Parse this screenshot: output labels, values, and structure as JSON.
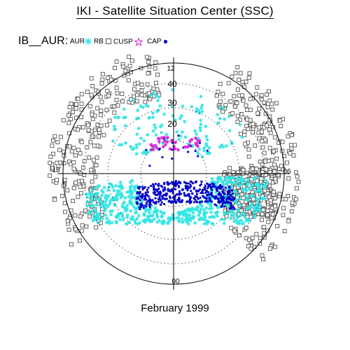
{
  "title": "IKI - Satellite Situation Center (SSC)",
  "legend": {
    "label": "IB__AUR:",
    "items": [
      {
        "name": "AUR",
        "symbol": "star",
        "color": "#33e5e5"
      },
      {
        "name": "RB",
        "symbol": "square",
        "color": "#555555"
      },
      {
        "name": "CUSP",
        "symbol": "star",
        "color": "#dd22dd"
      },
      {
        "name": "CAP",
        "symbol": "dot",
        "color": "#0000cc"
      }
    ]
  },
  "footer": "February 1999",
  "chart_data": {
    "type": "scatter",
    "coordinate_system": "polar (MLT / latitude)",
    "clock_labels": {
      "top": "12",
      "right": "06",
      "bottom": "00",
      "left": "18"
    },
    "radial_labels": [
      "40",
      "30",
      "20"
    ],
    "radial_max_label": "12",
    "grid": true,
    "series": [
      {
        "name": "AUR",
        "color": "#33e5e5",
        "marker": "star"
      },
      {
        "name": "RB",
        "color": "#555555",
        "marker": "square"
      },
      {
        "name": "CUSP",
        "color": "#dd22dd",
        "marker": "star"
      },
      {
        "name": "CAP",
        "color": "#0000cc",
        "marker": "dot"
      }
    ]
  }
}
